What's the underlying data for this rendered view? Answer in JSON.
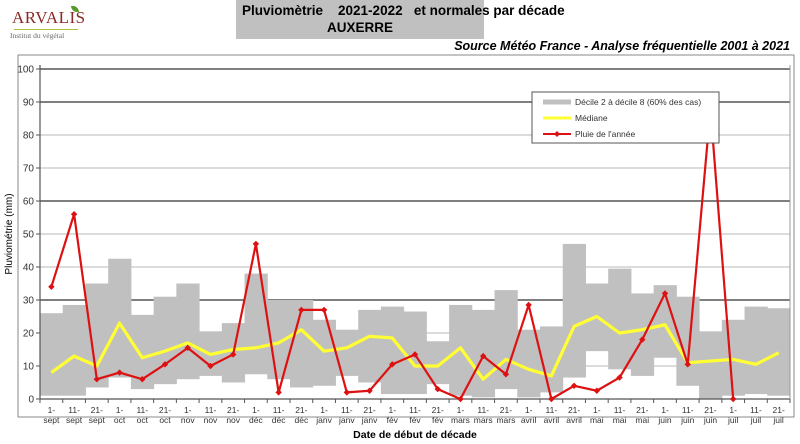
{
  "header": {
    "logo": {
      "name": "ARVALIS",
      "tagline": "Institut du végétal"
    },
    "title_line1": "Pluviomètrie    2021-2022   et normales par décade",
    "title_line2": "AUXERRE",
    "source": "Source Météo France - Analyse fréquentielle 2001 à 2021"
  },
  "colors": {
    "band": "#c0c0c0",
    "median": "#ffff33",
    "rain": "#dd1111",
    "title_bg": "#c0c0c0"
  },
  "chart_data": {
    "type": "line",
    "title": "Pluviomètrie 2021-2022 et normales par décade - AUXERRE",
    "subtitle": "Source Météo France - Analyse fréquentielle 2001 à 2021",
    "xlabel": "Date de début de décade",
    "ylabel": "Pluviométrie  (mm)",
    "ylim": [
      0,
      100
    ],
    "yticks": [
      0,
      10,
      20,
      30,
      40,
      50,
      60,
      70,
      80,
      90,
      100
    ],
    "grid": true,
    "legend_position": "upper right",
    "categories": [
      [
        "1-",
        "sept"
      ],
      [
        "11-",
        "sept"
      ],
      [
        "21-",
        "sept"
      ],
      [
        "1-",
        "oct"
      ],
      [
        "11-",
        "oct"
      ],
      [
        "21-",
        "oct"
      ],
      [
        "1-",
        "nov"
      ],
      [
        "11-",
        "nov"
      ],
      [
        "21-",
        "nov"
      ],
      [
        "1-",
        "déc"
      ],
      [
        "11-",
        "déc"
      ],
      [
        "21-",
        "déc"
      ],
      [
        "1-",
        "janv"
      ],
      [
        "11-",
        "janv"
      ],
      [
        "21-",
        "janv"
      ],
      [
        "1-",
        "fév"
      ],
      [
        "11-",
        "fév"
      ],
      [
        "21-",
        "fév"
      ],
      [
        "1-",
        "mars"
      ],
      [
        "11-",
        "mars"
      ],
      [
        "21-",
        "mars"
      ],
      [
        "1-",
        "avril"
      ],
      [
        "11-",
        "avril"
      ],
      [
        "21-",
        "avril"
      ],
      [
        "1-",
        "mai"
      ],
      [
        "11-",
        "mai"
      ],
      [
        "21-",
        "mai"
      ],
      [
        "1-",
        "juin"
      ],
      [
        "11-",
        "juin"
      ],
      [
        "21-",
        "juin"
      ],
      [
        "1-",
        "juil"
      ],
      [
        "11-",
        "juil"
      ],
      [
        "21-",
        "juil"
      ]
    ],
    "series": [
      {
        "name": "Décile 2 à décile 8 (60% des cas)",
        "type": "band",
        "low": [
          1,
          1,
          3.5,
          6.5,
          3,
          4.5,
          6,
          7,
          5,
          7.5,
          6,
          3.5,
          4,
          7,
          5,
          1.5,
          1.5,
          4.5,
          1,
          0.5,
          3,
          0.5,
          2,
          6.5,
          14.5,
          9,
          7,
          12.5,
          4,
          0,
          1,
          1.5,
          1
        ],
        "high": [
          26,
          28.5,
          35,
          42.5,
          25.5,
          31,
          35,
          20.5,
          23,
          38,
          30,
          30,
          24,
          21,
          27,
          28,
          26.5,
          17.5,
          28.5,
          27,
          33,
          21,
          22,
          47,
          35,
          39.5,
          32,
          34.5,
          31,
          20.5,
          24,
          28,
          27.5
        ]
      },
      {
        "name": "Médiane",
        "values": [
          8,
          13,
          10,
          23,
          12.5,
          14.5,
          17,
          13.5,
          15,
          15.5,
          17,
          21,
          14.5,
          15.5,
          19,
          18.5,
          10,
          10,
          15.5,
          6,
          12,
          9,
          7,
          22,
          25,
          20,
          21,
          22.5,
          11,
          11.5,
          12,
          10.5,
          14
        ]
      },
      {
        "name": "Pluie de l'année",
        "values": [
          34,
          56,
          6,
          8,
          6,
          10.5,
          15.5,
          10,
          13.5,
          47,
          2,
          27,
          27,
          2,
          2.5,
          10.5,
          13.5,
          3,
          0,
          13,
          7.5,
          28.5,
          0,
          4,
          2.5,
          6.5,
          18,
          32,
          10.5,
          88,
          0,
          null,
          null
        ]
      }
    ],
    "legend": [
      "Décile 2 à décile 8 (60% des cas)",
      "Médiane",
      "Pluie de l'année"
    ]
  }
}
